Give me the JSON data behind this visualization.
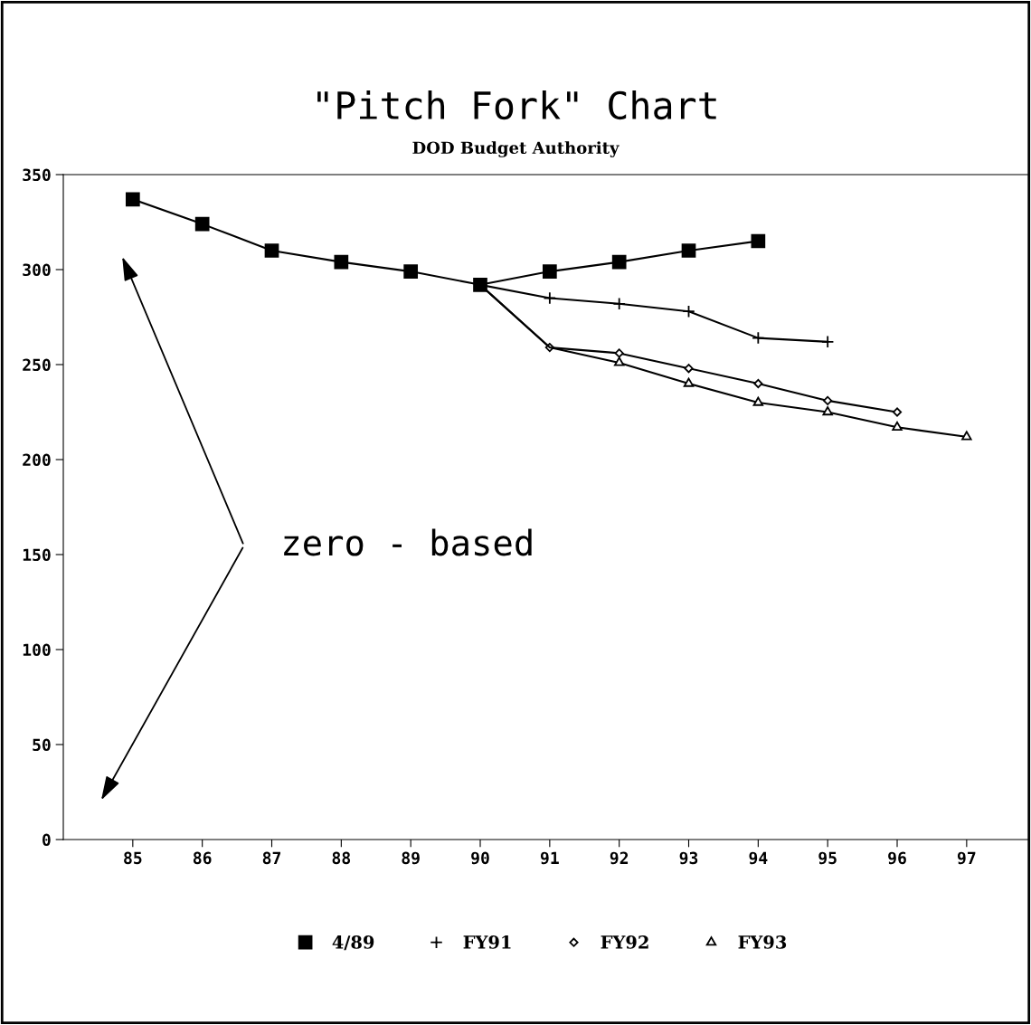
{
  "chart_data": {
    "type": "line",
    "title": "\"Pitch Fork\" Chart",
    "subtitle": "DOD Budget Authority",
    "xlim": [
      84,
      97.9
    ],
    "xticks": [
      85,
      86,
      87,
      88,
      89,
      90,
      91,
      92,
      93,
      94,
      95,
      96,
      97
    ],
    "ylim": [
      0,
      350
    ],
    "yticks": [
      0,
      50,
      100,
      150,
      200,
      250,
      300,
      350
    ],
    "grid": false,
    "legend": "bottom",
    "line_style": "solid",
    "annotations": [
      "zero - based"
    ],
    "series": [
      {
        "name": "4/89",
        "color": "#000000",
        "marker": "square",
        "x": [
          85,
          86,
          87,
          88,
          89,
          90,
          91,
          92,
          93,
          94
        ],
        "values": [
          337,
          324,
          310,
          304,
          299,
          292,
          299,
          304,
          310,
          315
        ]
      },
      {
        "name": "FY91",
        "color": "#000000",
        "marker": "cross",
        "x": [
          90,
          91,
          92,
          93,
          94,
          95
        ],
        "values": [
          292,
          285,
          282,
          278,
          264,
          262
        ]
      },
      {
        "name": "FY92",
        "color": "#000000",
        "marker": "diamond",
        "x": [
          90,
          91,
          92,
          93,
          94,
          95,
          96
        ],
        "values": [
          292,
          259,
          256,
          248,
          240,
          231,
          225
        ]
      },
      {
        "name": "FY93",
        "color": "#000000",
        "marker": "triangle",
        "x": [
          90,
          91,
          92,
          93,
          94,
          95,
          96,
          97
        ],
        "values": [
          292,
          259,
          251,
          240,
          230,
          225,
          217,
          212
        ]
      }
    ]
  }
}
